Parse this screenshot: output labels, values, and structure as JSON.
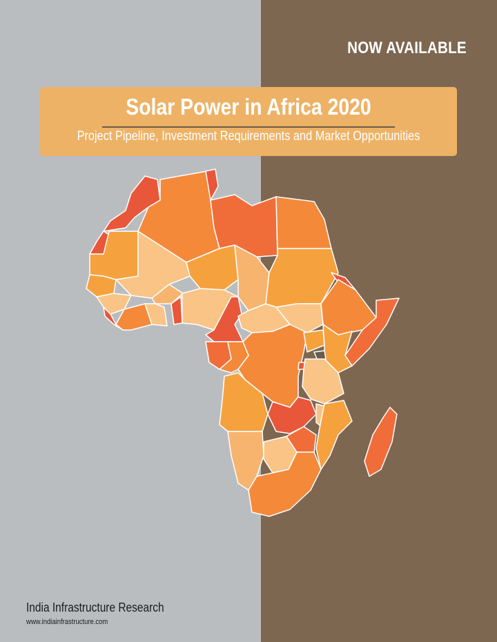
{
  "cover": {
    "availability_label": "NOW AVAILABLE",
    "title": "Solar Power in Africa 2020",
    "subtitle": "Project Pipeline, Investment Requirements and Market Opportunities"
  },
  "footer": {
    "publisher": "India Infrastructure Research",
    "website": "www.indiainfrastructure.com"
  },
  "colors": {
    "left_panel": "#babdc0",
    "right_panel": "#7d6750",
    "banner": "#edb266",
    "map_palette": [
      "#f4893a",
      "#f5a23e",
      "#f9c486",
      "#e8573a",
      "#f06d3a",
      "#f7b46e"
    ]
  }
}
